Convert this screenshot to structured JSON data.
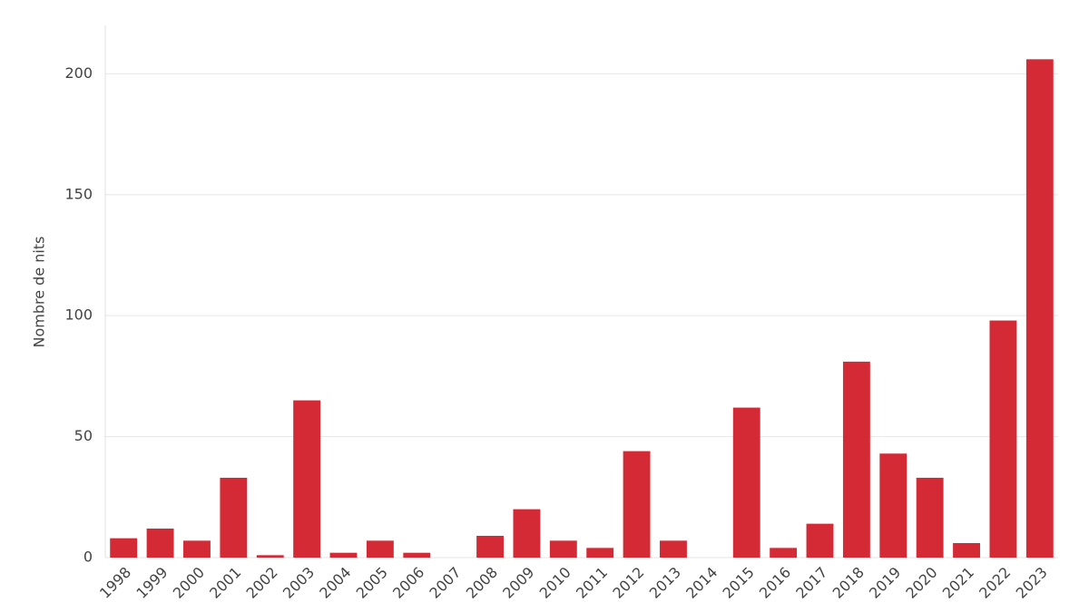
{
  "chart_data": {
    "type": "bar",
    "y_label": "Nombre de nits",
    "categories": [
      "1998",
      "1999",
      "2000",
      "2001",
      "2002",
      "2003",
      "2004",
      "2005",
      "2006",
      "2007",
      "2008",
      "2009",
      "2010",
      "2011",
      "2012",
      "2013",
      "2014",
      "2015",
      "2016",
      "2017",
      "2018",
      "2019",
      "2020",
      "2021",
      "2022",
      "2023"
    ],
    "values": [
      8,
      12,
      7,
      33,
      1,
      65,
      2,
      7,
      2,
      0,
      9,
      20,
      7,
      4,
      44,
      7,
      0,
      62,
      4,
      14,
      81,
      43,
      33,
      6,
      98,
      206
    ],
    "color": "#d42a35",
    "ylim": [
      0,
      220
    ],
    "yticks": [
      0,
      50,
      100,
      150,
      200
    ],
    "grid": true
  }
}
